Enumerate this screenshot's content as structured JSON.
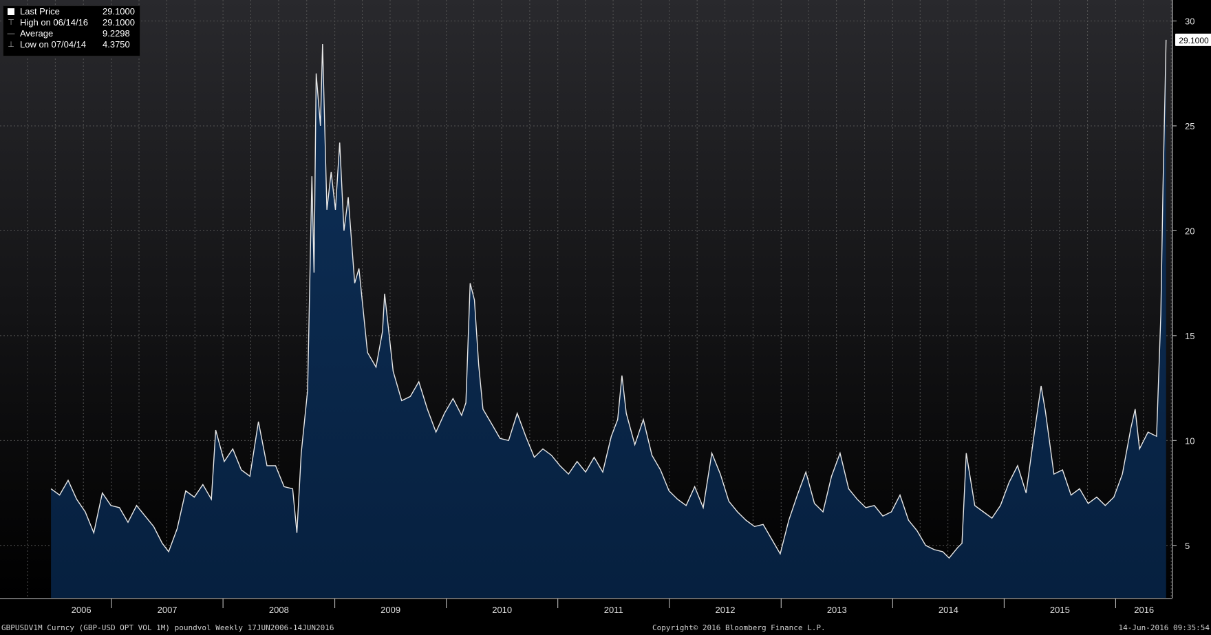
{
  "legend": {
    "rows": [
      {
        "label": "Last Price",
        "value": "29.1000",
        "icon": "square-swatch"
      },
      {
        "label": "High on 06/14/16",
        "value": "29.1000",
        "icon": "high-marker"
      },
      {
        "label": "Average",
        "value": "9.2298",
        "icon": "average-marker"
      },
      {
        "label": "Low on 07/04/14",
        "value": "4.3750",
        "icon": "low-marker"
      }
    ]
  },
  "footer": {
    "left": "GBPUSDV1M Curncy (GBP-USD OPT VOL 1M) poundvol  Weekly 17JUN2006-14JUN2016",
    "center": "Copyright© 2016 Bloomberg Finance L.P.",
    "right": "14-Jun-2016 09:35:54"
  },
  "chart_data": {
    "type": "area",
    "xlabel": "",
    "ylabel": "",
    "x_range": [
      "2006-06-17",
      "2016-06-14"
    ],
    "ylim": [
      2.5,
      31
    ],
    "y_ticks": [
      5,
      10,
      15,
      20,
      25,
      30
    ],
    "x_tick_labels": [
      "2006",
      "2007",
      "2008",
      "2009",
      "2010",
      "2011",
      "2012",
      "2013",
      "2014",
      "2015",
      "2016"
    ],
    "last_value_label": "29.1000",
    "grid": true,
    "colors": {
      "line": "#e8e8e8",
      "fill_top": "#0d2a4c",
      "fill_bottom": "#062040",
      "grid": "#555555",
      "background_top": "#2a2a2e",
      "background_bottom": "#000000"
    },
    "series": [
      {
        "points": [
          [
            "2006-06-17",
            7.7
          ],
          [
            "2006-07-15",
            7.4
          ],
          [
            "2006-08-12",
            8.1
          ],
          [
            "2006-09-09",
            7.2
          ],
          [
            "2006-10-07",
            6.6
          ],
          [
            "2006-11-04",
            5.6
          ],
          [
            "2006-12-02",
            7.5
          ],
          [
            "2006-12-30",
            6.9
          ],
          [
            "2007-01-27",
            6.8
          ],
          [
            "2007-02-24",
            6.1
          ],
          [
            "2007-03-24",
            6.9
          ],
          [
            "2007-04-21",
            6.4
          ],
          [
            "2007-05-19",
            5.9
          ],
          [
            "2007-06-16",
            5.1
          ],
          [
            "2007-07-07",
            4.7
          ],
          [
            "2007-08-04",
            5.8
          ],
          [
            "2007-09-01",
            7.6
          ],
          [
            "2007-09-29",
            7.3
          ],
          [
            "2007-10-27",
            7.9
          ],
          [
            "2007-11-24",
            7.2
          ],
          [
            "2007-12-08",
            10.5
          ],
          [
            "2008-01-05",
            9.0
          ],
          [
            "2008-02-02",
            9.6
          ],
          [
            "2008-03-01",
            8.6
          ],
          [
            "2008-03-29",
            8.3
          ],
          [
            "2008-04-26",
            10.9
          ],
          [
            "2008-05-24",
            8.8
          ],
          [
            "2008-06-21",
            8.8
          ],
          [
            "2008-07-19",
            7.8
          ],
          [
            "2008-08-16",
            7.7
          ],
          [
            "2008-08-30",
            5.6
          ],
          [
            "2008-09-13",
            9.4
          ],
          [
            "2008-10-04",
            12.4
          ],
          [
            "2008-10-18",
            22.6
          ],
          [
            "2008-10-25",
            18.0
          ],
          [
            "2008-11-01",
            27.5
          ],
          [
            "2008-11-15",
            25.0
          ],
          [
            "2008-11-22",
            28.9
          ],
          [
            "2008-12-06",
            21.0
          ],
          [
            "2008-12-20",
            22.8
          ],
          [
            "2009-01-03",
            21.0
          ],
          [
            "2009-01-17",
            24.2
          ],
          [
            "2009-01-31",
            20.0
          ],
          [
            "2009-02-14",
            21.6
          ],
          [
            "2009-03-07",
            17.5
          ],
          [
            "2009-03-21",
            18.2
          ],
          [
            "2009-04-18",
            14.2
          ],
          [
            "2009-05-16",
            13.5
          ],
          [
            "2009-06-06",
            15.2
          ],
          [
            "2009-06-13",
            17.0
          ],
          [
            "2009-07-11",
            13.3
          ],
          [
            "2009-08-08",
            11.9
          ],
          [
            "2009-09-05",
            12.1
          ],
          [
            "2009-10-03",
            12.8
          ],
          [
            "2009-10-31",
            11.5
          ],
          [
            "2009-11-28",
            10.4
          ],
          [
            "2009-12-26",
            11.3
          ],
          [
            "2010-01-23",
            12.0
          ],
          [
            "2010-02-20",
            11.2
          ],
          [
            "2010-03-06",
            11.8
          ],
          [
            "2010-03-20",
            17.5
          ],
          [
            "2010-04-03",
            16.7
          ],
          [
            "2010-04-17",
            13.6
          ],
          [
            "2010-05-01",
            11.5
          ],
          [
            "2010-05-29",
            10.8
          ],
          [
            "2010-06-26",
            10.1
          ],
          [
            "2010-07-24",
            10.0
          ],
          [
            "2010-08-21",
            11.3
          ],
          [
            "2010-09-18",
            10.2
          ],
          [
            "2010-10-16",
            9.2
          ],
          [
            "2010-11-13",
            9.6
          ],
          [
            "2010-12-11",
            9.3
          ],
          [
            "2011-01-08",
            8.8
          ],
          [
            "2011-02-05",
            8.4
          ],
          [
            "2011-03-05",
            9.0
          ],
          [
            "2011-04-02",
            8.5
          ],
          [
            "2011-04-30",
            9.2
          ],
          [
            "2011-05-28",
            8.5
          ],
          [
            "2011-06-25",
            10.2
          ],
          [
            "2011-07-16",
            11.0
          ],
          [
            "2011-07-30",
            13.1
          ],
          [
            "2011-08-13",
            11.3
          ],
          [
            "2011-09-10",
            9.8
          ],
          [
            "2011-10-08",
            11.0
          ],
          [
            "2011-11-05",
            9.3
          ],
          [
            "2011-12-03",
            8.6
          ],
          [
            "2011-12-31",
            7.6
          ],
          [
            "2012-01-28",
            7.2
          ],
          [
            "2012-02-25",
            6.9
          ],
          [
            "2012-03-24",
            7.8
          ],
          [
            "2012-04-21",
            6.8
          ],
          [
            "2012-05-19",
            9.4
          ],
          [
            "2012-06-16",
            8.4
          ],
          [
            "2012-07-14",
            7.1
          ],
          [
            "2012-08-11",
            6.6
          ],
          [
            "2012-09-08",
            6.2
          ],
          [
            "2012-10-06",
            5.9
          ],
          [
            "2012-11-03",
            6.0
          ],
          [
            "2012-12-01",
            5.3
          ],
          [
            "2012-12-29",
            4.6
          ],
          [
            "2013-01-26",
            6.2
          ],
          [
            "2013-02-23",
            7.4
          ],
          [
            "2013-03-23",
            8.5
          ],
          [
            "2013-04-20",
            7.0
          ],
          [
            "2013-05-18",
            6.6
          ],
          [
            "2013-06-15",
            8.3
          ],
          [
            "2013-07-13",
            9.4
          ],
          [
            "2013-08-10",
            7.7
          ],
          [
            "2013-09-07",
            7.2
          ],
          [
            "2013-10-05",
            6.8
          ],
          [
            "2013-11-02",
            6.9
          ],
          [
            "2013-11-30",
            6.4
          ],
          [
            "2013-12-28",
            6.6
          ],
          [
            "2014-01-25",
            7.4
          ],
          [
            "2014-02-22",
            6.2
          ],
          [
            "2014-03-22",
            5.7
          ],
          [
            "2014-04-19",
            5.0
          ],
          [
            "2014-05-17",
            4.8
          ],
          [
            "2014-06-14",
            4.7
          ],
          [
            "2014-07-05",
            4.4
          ],
          [
            "2014-08-02",
            4.9
          ],
          [
            "2014-08-16",
            5.1
          ],
          [
            "2014-08-30",
            9.4
          ],
          [
            "2014-09-27",
            6.9
          ],
          [
            "2014-10-25",
            6.6
          ],
          [
            "2014-11-22",
            6.3
          ],
          [
            "2014-12-20",
            6.9
          ],
          [
            "2015-01-17",
            8.0
          ],
          [
            "2015-02-14",
            8.8
          ],
          [
            "2015-03-14",
            7.5
          ],
          [
            "2015-04-11",
            10.5
          ],
          [
            "2015-05-02",
            12.6
          ],
          [
            "2015-05-16",
            11.4
          ],
          [
            "2015-06-13",
            8.4
          ],
          [
            "2015-07-11",
            8.6
          ],
          [
            "2015-08-08",
            7.4
          ],
          [
            "2015-09-05",
            7.7
          ],
          [
            "2015-10-03",
            7.0
          ],
          [
            "2015-10-31",
            7.3
          ],
          [
            "2015-11-28",
            6.9
          ],
          [
            "2015-12-26",
            7.3
          ],
          [
            "2016-01-23",
            8.4
          ],
          [
            "2016-02-20",
            10.6
          ],
          [
            "2016-03-05",
            11.5
          ],
          [
            "2016-03-19",
            9.6
          ],
          [
            "2016-04-16",
            10.4
          ],
          [
            "2016-05-14",
            10.2
          ],
          [
            "2016-05-28",
            16.0
          ],
          [
            "2016-06-04",
            22.0
          ],
          [
            "2016-06-11",
            26.8
          ],
          [
            "2016-06-14",
            29.1
          ]
        ]
      }
    ]
  }
}
